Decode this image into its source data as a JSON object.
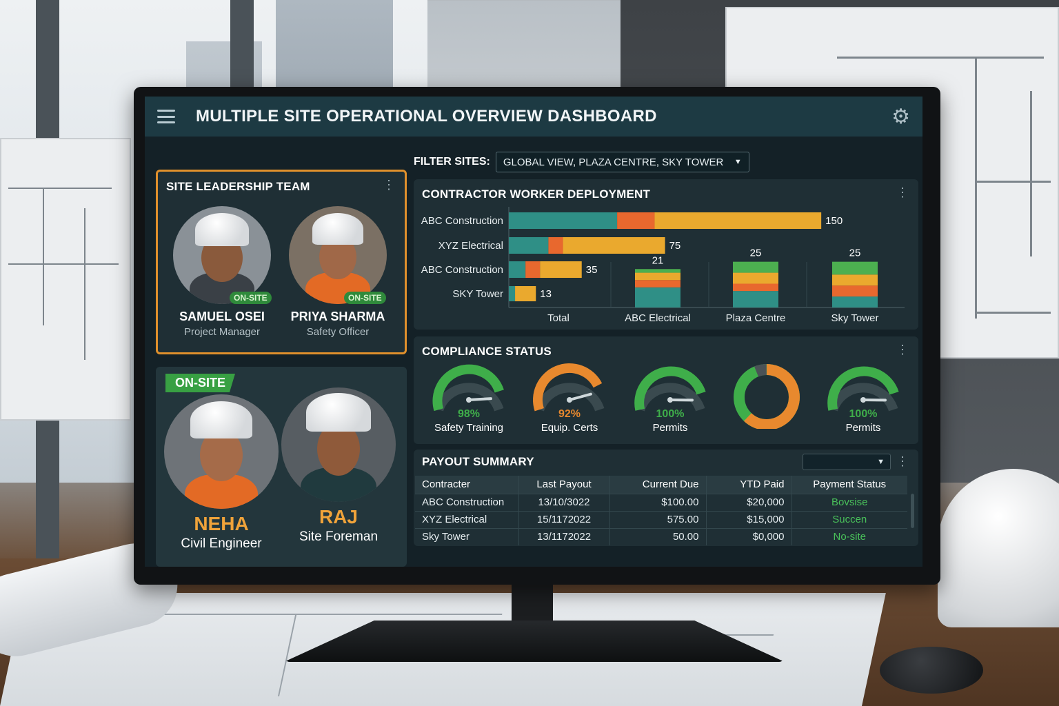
{
  "app": {
    "title": "MULTIPLE SITE OPERATIONAL OVERVIEW DASHBOARD",
    "menu_icon": "hamburger-icon",
    "settings_icon": "gear-icon"
  },
  "filter": {
    "label": "FILTER SITES:",
    "selected": "GLOBAL VIEW, PLAZA CENTRE, SKY TOWER"
  },
  "leadership": {
    "title": "SITE LEADERSHIP TEAM",
    "border_color": "#e0902c",
    "members": [
      {
        "name": "SAMUEL OSEI",
        "role": "Project Manager",
        "badge": "ON-SITE"
      },
      {
        "name": "PRIYA SHARMA",
        "role": "Safety Officer",
        "badge": "ON-SITE"
      }
    ]
  },
  "crew": {
    "badge": "ON-SITE",
    "members": [
      {
        "name": "NEHA",
        "role": "Civil Engineer"
      },
      {
        "name": "RAJ",
        "role": "Site Foreman"
      }
    ]
  },
  "deployment": {
    "title": "CONTRACTOR WORKER DEPLOYMENT"
  },
  "chart_data": [
    {
      "type": "bar",
      "orientation": "horizontal",
      "stacked": true,
      "categories": [
        "ABC Construction",
        "XYZ Electrical",
        "ABC Construction",
        "SKY Tower"
      ],
      "totals": [
        150,
        75,
        35,
        13
      ],
      "series": [
        {
          "color": "#2f8f86",
          "values": [
            52,
            19,
            8,
            3
          ]
        },
        {
          "color": "#e8682e",
          "values": [
            18,
            7,
            7,
            0
          ]
        },
        {
          "color": "#eaa92e",
          "values": [
            80,
            49,
            20,
            10
          ]
        }
      ],
      "xlim": [
        0,
        190
      ]
    },
    {
      "type": "bar",
      "orientation": "vertical",
      "stacked": true,
      "categories": [
        "Total",
        "ABC Electrical",
        "Plaza Centre",
        "Sky Tower"
      ],
      "totals": [
        null,
        21,
        25,
        25
      ],
      "series": [
        {
          "color": "#2f8f86",
          "values": [
            0,
            11,
            9,
            6
          ]
        },
        {
          "color": "#e8682e",
          "values": [
            0,
            4,
            4,
            6
          ]
        },
        {
          "color": "#eaa92e",
          "values": [
            0,
            4,
            6,
            6
          ]
        },
        {
          "color": "#4caf50",
          "values": [
            0,
            2,
            6,
            7
          ]
        }
      ],
      "ylim": [
        0,
        55
      ]
    }
  ],
  "compliance": {
    "title": "COMPLIANCE STATUS",
    "gauges": [
      {
        "type": "gauge",
        "value": 98,
        "value_label": "98%",
        "label": "Safety Training",
        "color": "#3fae4a"
      },
      {
        "type": "gauge",
        "value": 92,
        "value_label": "92%",
        "label": "Equip. Certs",
        "color": "#e8892e"
      },
      {
        "type": "gauge",
        "value": 100,
        "value_label": "100%",
        "label": "Permits",
        "color": "#3fae4a"
      },
      {
        "type": "donut",
        "value": 62,
        "color": "#e8892e",
        "secondary_color": "#3fae4a"
      },
      {
        "type": "gauge",
        "value": 100,
        "value_label": "100%",
        "label": "Permits",
        "color": "#3fae4a"
      }
    ]
  },
  "payout": {
    "title": "PAYOUT SUMMARY",
    "dropdown_value": "",
    "columns": [
      "Contracter",
      "Last Payout",
      "Current Due",
      "YTD Paid",
      "Payment Status"
    ],
    "rows": [
      [
        "ABC Construction",
        "13/10/3022",
        "$100.00",
        "$20,000",
        "Bovsise"
      ],
      [
        "XYZ Electrical",
        "15/1172022",
        "575.00",
        "$15,000",
        "Succen"
      ],
      [
        "Sky Tower",
        "13/1172022",
        "50.00",
        "$0,000",
        "No-site"
      ]
    ]
  }
}
